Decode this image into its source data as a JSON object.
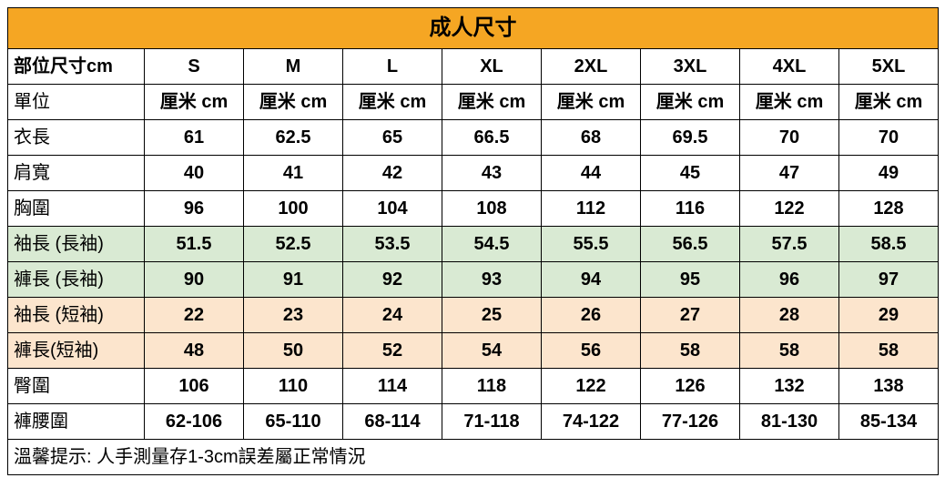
{
  "title": "成人尺寸",
  "columns": [
    "部位尺寸cm",
    "S",
    "M",
    "L",
    "XL",
    "2XL",
    "3XL",
    "4XL",
    "5XL"
  ],
  "unit_row": {
    "label": "單位",
    "value": "厘米 cm"
  },
  "rows": [
    {
      "label": "衣長",
      "values": [
        "61",
        "62.5",
        "65",
        "66.5",
        "68",
        "69.5",
        "70",
        "70"
      ],
      "style": "plain"
    },
    {
      "label": "肩寬",
      "values": [
        "40",
        "41",
        "42",
        "43",
        "44",
        "45",
        "47",
        "49"
      ],
      "style": "plain"
    },
    {
      "label": "胸圍",
      "values": [
        "96",
        "100",
        "104",
        "108",
        "112",
        "116",
        "122",
        "128"
      ],
      "style": "plain"
    },
    {
      "label": "袖長 (長袖)",
      "values": [
        "51.5",
        "52.5",
        "53.5",
        "54.5",
        "55.5",
        "56.5",
        "57.5",
        "58.5"
      ],
      "style": "green"
    },
    {
      "label": "褲長 (長袖)",
      "values": [
        "90",
        "91",
        "92",
        "93",
        "94",
        "95",
        "96",
        "97"
      ],
      "style": "green"
    },
    {
      "label": "袖長 (短袖)",
      "values": [
        "22",
        "23",
        "24",
        "25",
        "26",
        "27",
        "28",
        "29"
      ],
      "style": "beige"
    },
    {
      "label": "褲長(短袖)",
      "values": [
        "48",
        "50",
        "52",
        "54",
        "56",
        "58",
        "58",
        "58"
      ],
      "style": "beige"
    },
    {
      "label": "臀圍",
      "values": [
        "106",
        "110",
        "114",
        "118",
        "122",
        "126",
        "132",
        "138"
      ],
      "style": "plain"
    },
    {
      "label": "褲腰圍",
      "values": [
        "62-106",
        "65-110",
        "68-114",
        "71-118",
        "74-122",
        "77-126",
        "81-130",
        "85-134"
      ],
      "style": "plain"
    }
  ],
  "footer": "溫馨提示: 人手測量存1-3cm誤差屬正常情況",
  "colors": {
    "title_bg": "#f5a623",
    "green_bg": "#d9ead3",
    "beige_bg": "#fce5cd",
    "border": "#000000"
  }
}
